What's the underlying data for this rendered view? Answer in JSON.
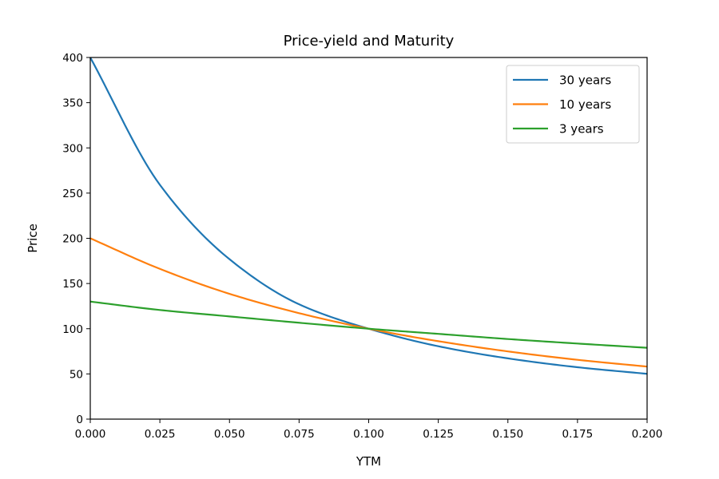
{
  "chart_data": {
    "type": "line",
    "title": "Price-yield and Maturity",
    "xlabel": "YTM",
    "ylabel": "Price",
    "xlim": [
      0.0,
      0.2
    ],
    "ylim": [
      0,
      400
    ],
    "x_ticks": [
      "0.000",
      "0.025",
      "0.050",
      "0.075",
      "0.100",
      "0.125",
      "0.150",
      "0.175",
      "0.200"
    ],
    "y_ticks": [
      "0",
      "50",
      "100",
      "150",
      "200",
      "250",
      "300",
      "350",
      "400"
    ],
    "grid": false,
    "legend_position": "top-right",
    "x": [
      0.0,
      0.025,
      0.05,
      0.075,
      0.1,
      0.125,
      0.15,
      0.175,
      0.2
    ],
    "series": [
      {
        "name": "30 years",
        "color": "#1f77b4",
        "values": [
          400.0,
          259.2,
          176.9,
          127.0,
          100.0,
          80.6,
          67.2,
          57.4,
          50.1
        ]
      },
      {
        "name": "10 years",
        "color": "#ff7f0e",
        "values": [
          200.0,
          166.2,
          138.6,
          117.2,
          100.0,
          86.2,
          74.9,
          65.6,
          58.1
        ]
      },
      {
        "name": "3 years",
        "color": "#2ca02c",
        "values": [
          130.0,
          120.7,
          113.6,
          106.6,
          100.0,
          94.3,
          88.6,
          83.6,
          78.9
        ]
      }
    ]
  }
}
